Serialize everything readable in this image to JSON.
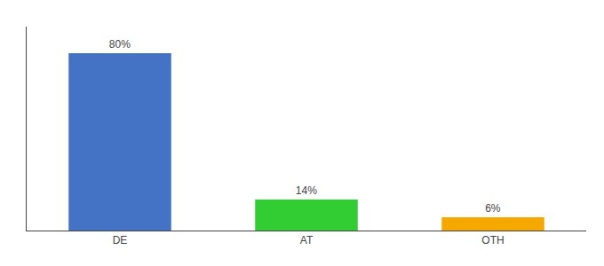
{
  "chart_data": {
    "type": "bar",
    "categories": [
      "DE",
      "AT",
      "OTH"
    ],
    "values": [
      80,
      14,
      6
    ],
    "value_labels": [
      "80%",
      "14%",
      "6%"
    ],
    "colors": [
      "#4472c4",
      "#32cd32",
      "#f5a800"
    ],
    "ylim": [
      0,
      92
    ],
    "grid": false,
    "data_labels": true,
    "tick_labels": "x"
  }
}
